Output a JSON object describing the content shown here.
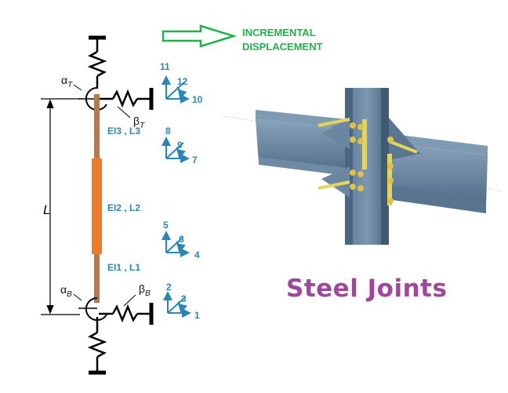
{
  "annotation": {
    "line1": "INCREMENTAL",
    "line2": "DISPLACEMENT"
  },
  "member": {
    "length_label": "L",
    "segments": [
      {
        "label": "EI3 , L3"
      },
      {
        "label": "EI2 , L2"
      },
      {
        "label": "EI1 , L1"
      }
    ]
  },
  "springs": {
    "alpha_top": "α",
    "alpha_top_sub": "T",
    "beta_top": "β",
    "beta_top_sub": "T",
    "alpha_bottom": "α",
    "alpha_bottom_sub": "B",
    "beta_bottom": "β",
    "beta_bottom_sub": "B"
  },
  "dof_groups": [
    {
      "vertical": "11",
      "rotation": "12",
      "horizontal": "10"
    },
    {
      "vertical": "8",
      "rotation": "9",
      "horizontal": "7"
    },
    {
      "vertical": "5",
      "rotation": "6",
      "horizontal": "4"
    },
    {
      "vertical": "2",
      "rotation": "3",
      "horizontal": "1"
    }
  ],
  "caption": "Steel Joints",
  "colors": {
    "arrow": "#22b14c",
    "dof": "#2b86b4",
    "column": "#b07a55",
    "middle_segment": "#ee7a2a",
    "caption": "#a0479b",
    "steel": "#5f7d9a"
  }
}
